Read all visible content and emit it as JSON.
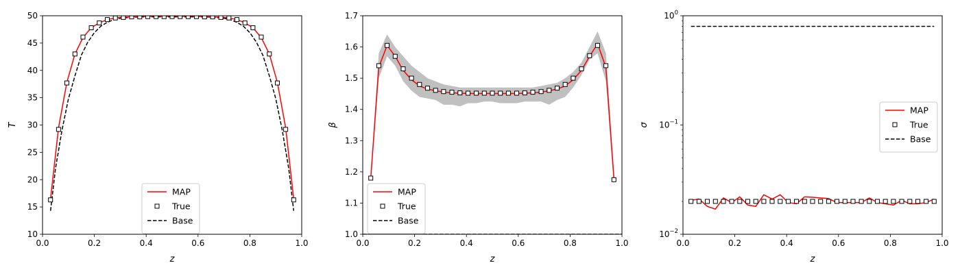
{
  "chart_data": [
    {
      "type": "line",
      "xlabel": "z",
      "ylabel": "T",
      "xlim": [
        0,
        1
      ],
      "ylim": [
        10,
        50
      ],
      "xticks": [
        "0.0",
        "0.2",
        "0.4",
        "0.6",
        "0.8",
        "1.0"
      ],
      "yticks": [
        "10",
        "15",
        "20",
        "25",
        "30",
        "35",
        "40",
        "45",
        "50"
      ],
      "legend": {
        "placement": "lower-center",
        "entries": [
          "MAP",
          "True",
          " Base"
        ]
      },
      "series": [
        {
          "name": "MAP",
          "kind": "line",
          "color": "#ff0000",
          "x": [
            0.031,
            0.062,
            0.094,
            0.125,
            0.156,
            0.188,
            0.219,
            0.25,
            0.281,
            0.312,
            0.344,
            0.375,
            0.406,
            0.438,
            0.469,
            0.5,
            0.531,
            0.562,
            0.594,
            0.625,
            0.656,
            0.688,
            0.719,
            0.75,
            0.781,
            0.812,
            0.844,
            0.875,
            0.906,
            0.938,
            0.969
          ],
          "y": [
            16.5,
            29.5,
            37.8,
            43.0,
            46.0,
            47.8,
            48.7,
            49.3,
            49.6,
            49.75,
            49.8,
            49.85,
            49.9,
            49.9,
            49.9,
            49.9,
            49.9,
            49.9,
            49.9,
            49.85,
            49.8,
            49.75,
            49.6,
            49.3,
            48.7,
            47.8,
            46.0,
            43.0,
            37.8,
            29.5,
            16.5
          ]
        },
        {
          "name": "True",
          "kind": "marker",
          "color": "#000000",
          "x": [
            0.031,
            0.062,
            0.094,
            0.125,
            0.156,
            0.188,
            0.219,
            0.25,
            0.281,
            0.312,
            0.344,
            0.375,
            0.406,
            0.438,
            0.469,
            0.5,
            0.531,
            0.562,
            0.594,
            0.625,
            0.656,
            0.688,
            0.719,
            0.75,
            0.781,
            0.812,
            0.844,
            0.875,
            0.906,
            0.938,
            0.969
          ],
          "y": [
            16.3,
            29.2,
            37.7,
            43.0,
            46.1,
            47.8,
            48.7,
            49.3,
            49.6,
            49.7,
            49.8,
            49.8,
            49.85,
            49.85,
            49.85,
            49.85,
            49.85,
            49.85,
            49.85,
            49.8,
            49.8,
            49.7,
            49.6,
            49.3,
            48.7,
            47.8,
            46.1,
            43.0,
            37.7,
            29.2,
            16.3
          ]
        },
        {
          "name": " Base",
          "kind": "dashed",
          "color": "#000000",
          "x": [
            0.031,
            0.05,
            0.075,
            0.1,
            0.125,
            0.15,
            0.175,
            0.2,
            0.225,
            0.25,
            0.275,
            0.3,
            0.35,
            0.4,
            0.45,
            0.5,
            0.55,
            0.6,
            0.65,
            0.7,
            0.725,
            0.75,
            0.775,
            0.8,
            0.825,
            0.85,
            0.875,
            0.9,
            0.925,
            0.95,
            0.969
          ],
          "y": [
            14.3,
            22.0,
            29.0,
            34.8,
            39.0,
            42.8,
            45.2,
            46.9,
            48.1,
            48.8,
            49.3,
            49.55,
            49.75,
            49.8,
            49.8,
            49.8,
            49.8,
            49.8,
            49.75,
            49.55,
            49.3,
            48.8,
            48.1,
            46.9,
            45.2,
            42.8,
            39.0,
            34.8,
            29.0,
            22.0,
            14.3
          ]
        }
      ]
    },
    {
      "type": "line",
      "xlabel": "z",
      "ylabel": "β",
      "xlim": [
        0,
        1
      ],
      "ylim": [
        1.0,
        1.7
      ],
      "xticks": [
        "0.0",
        "0.2",
        "0.4",
        "0.6",
        "0.8",
        "1.0"
      ],
      "yticks": [
        "1.0",
        "1.1",
        "1.2",
        "1.3",
        "1.4",
        "1.5",
        "1.6",
        "1.7"
      ],
      "legend": {
        "placement": "lower-left",
        "entries": [
          "MAP",
          "True",
          "Base"
        ]
      },
      "band": {
        "color": "#c0c0c0",
        "x": [
          0.031,
          0.062,
          0.094,
          0.125,
          0.156,
          0.188,
          0.219,
          0.25,
          0.281,
          0.312,
          0.344,
          0.375,
          0.406,
          0.438,
          0.469,
          0.5,
          0.531,
          0.562,
          0.594,
          0.625,
          0.656,
          0.688,
          0.719,
          0.75,
          0.781,
          0.812,
          0.844,
          0.875,
          0.906,
          0.938,
          0.969
        ],
        "upper": [
          1.19,
          1.58,
          1.64,
          1.6,
          1.57,
          1.54,
          1.52,
          1.5,
          1.49,
          1.48,
          1.475,
          1.47,
          1.47,
          1.47,
          1.47,
          1.47,
          1.47,
          1.47,
          1.47,
          1.47,
          1.47,
          1.475,
          1.48,
          1.485,
          1.5,
          1.52,
          1.55,
          1.6,
          1.65,
          1.58,
          1.19
        ],
        "lower": [
          1.17,
          1.5,
          1.57,
          1.54,
          1.49,
          1.46,
          1.44,
          1.435,
          1.43,
          1.415,
          1.415,
          1.41,
          1.42,
          1.42,
          1.425,
          1.425,
          1.42,
          1.42,
          1.42,
          1.425,
          1.425,
          1.425,
          1.415,
          1.43,
          1.44,
          1.47,
          1.51,
          1.56,
          1.58,
          1.49,
          1.15
        ]
      },
      "series": [
        {
          "name": "MAP",
          "kind": "line",
          "color": "#ff0000",
          "x": [
            0.031,
            0.062,
            0.094,
            0.125,
            0.156,
            0.188,
            0.219,
            0.25,
            0.281,
            0.312,
            0.344,
            0.375,
            0.406,
            0.438,
            0.469,
            0.5,
            0.531,
            0.562,
            0.594,
            0.625,
            0.656,
            0.688,
            0.719,
            0.75,
            0.781,
            0.812,
            0.844,
            0.875,
            0.906,
            0.938,
            0.969
          ],
          "y": [
            1.18,
            1.535,
            1.605,
            1.57,
            1.525,
            1.495,
            1.475,
            1.465,
            1.46,
            1.455,
            1.453,
            1.452,
            1.451,
            1.451,
            1.451,
            1.451,
            1.451,
            1.451,
            1.451,
            1.452,
            1.453,
            1.455,
            1.46,
            1.465,
            1.475,
            1.495,
            1.525,
            1.57,
            1.61,
            1.535,
            1.18
          ]
        },
        {
          "name": "True",
          "kind": "marker",
          "color": "#000000",
          "x": [
            0.031,
            0.062,
            0.094,
            0.125,
            0.156,
            0.188,
            0.219,
            0.25,
            0.281,
            0.312,
            0.344,
            0.375,
            0.406,
            0.438,
            0.469,
            0.5,
            0.531,
            0.562,
            0.594,
            0.625,
            0.656,
            0.688,
            0.719,
            0.75,
            0.781,
            0.812,
            0.844,
            0.875,
            0.906,
            0.938,
            0.969
          ],
          "y": [
            1.18,
            1.54,
            1.605,
            1.57,
            1.53,
            1.5,
            1.48,
            1.468,
            1.461,
            1.457,
            1.455,
            1.453,
            1.452,
            1.452,
            1.452,
            1.452,
            1.452,
            1.452,
            1.452,
            1.453,
            1.455,
            1.457,
            1.461,
            1.468,
            1.48,
            1.5,
            1.53,
            1.572,
            1.605,
            1.54,
            1.175
          ]
        },
        {
          "name": "Base",
          "kind": "dashed",
          "color": "#000000",
          "x": [
            0.0,
            1.0
          ],
          "y": [
            1.0,
            1.0
          ]
        }
      ]
    },
    {
      "type": "line",
      "xlabel": "z",
      "ylabel": "σ",
      "xlim": [
        0,
        1
      ],
      "ylim": [
        0.01,
        1
      ],
      "yscale": "log",
      "xticks": [
        "0.0",
        "0.2",
        "0.4",
        "0.6",
        "0.8",
        "1.0"
      ],
      "yticks": [
        {
          "value": 0.01,
          "base": "10",
          "exp": "−2"
        },
        {
          "value": 0.1,
          "base": "10",
          "exp": "−1"
        },
        {
          "value": 1,
          "base": "10",
          "exp": "0"
        }
      ],
      "legend": {
        "placement": "center-right",
        "entries": [
          "MAP",
          "True",
          "Base"
        ]
      },
      "series": [
        {
          "name": "MAP",
          "kind": "line",
          "color": "#ff0000",
          "x": [
            0.031,
            0.062,
            0.094,
            0.125,
            0.156,
            0.188,
            0.219,
            0.25,
            0.281,
            0.312,
            0.344,
            0.375,
            0.406,
            0.438,
            0.469,
            0.5,
            0.531,
            0.562,
            0.594,
            0.625,
            0.656,
            0.688,
            0.719,
            0.75,
            0.781,
            0.812,
            0.844,
            0.875,
            0.906,
            0.938,
            0.969
          ],
          "y": [
            0.0205,
            0.021,
            0.018,
            0.017,
            0.0215,
            0.0195,
            0.022,
            0.0185,
            0.018,
            0.023,
            0.021,
            0.023,
            0.0195,
            0.019,
            0.022,
            0.0218,
            0.0215,
            0.0212,
            0.0195,
            0.0195,
            0.0195,
            0.0195,
            0.0215,
            0.0195,
            0.019,
            0.0185,
            0.0205,
            0.019,
            0.019,
            0.0195,
            0.021
          ]
        },
        {
          "name": "True",
          "kind": "marker",
          "color": "#000000",
          "x": [
            0.031,
            0.062,
            0.094,
            0.125,
            0.156,
            0.188,
            0.219,
            0.25,
            0.281,
            0.312,
            0.344,
            0.375,
            0.406,
            0.438,
            0.469,
            0.5,
            0.531,
            0.562,
            0.594,
            0.625,
            0.656,
            0.688,
            0.719,
            0.75,
            0.781,
            0.812,
            0.844,
            0.875,
            0.906,
            0.938,
            0.969
          ],
          "y": [
            0.02,
            0.02,
            0.02,
            0.02,
            0.02,
            0.02,
            0.02,
            0.02,
            0.02,
            0.02,
            0.02,
            0.02,
            0.02,
            0.02,
            0.02,
            0.02,
            0.02,
            0.02,
            0.02,
            0.02,
            0.02,
            0.02,
            0.02,
            0.02,
            0.02,
            0.02,
            0.02,
            0.02,
            0.02,
            0.02,
            0.02
          ]
        },
        {
          "name": "Base",
          "kind": "dashed",
          "color": "#000000",
          "x": [
            0.031,
            0.969
          ],
          "y": [
            0.8,
            0.8
          ]
        }
      ]
    }
  ]
}
